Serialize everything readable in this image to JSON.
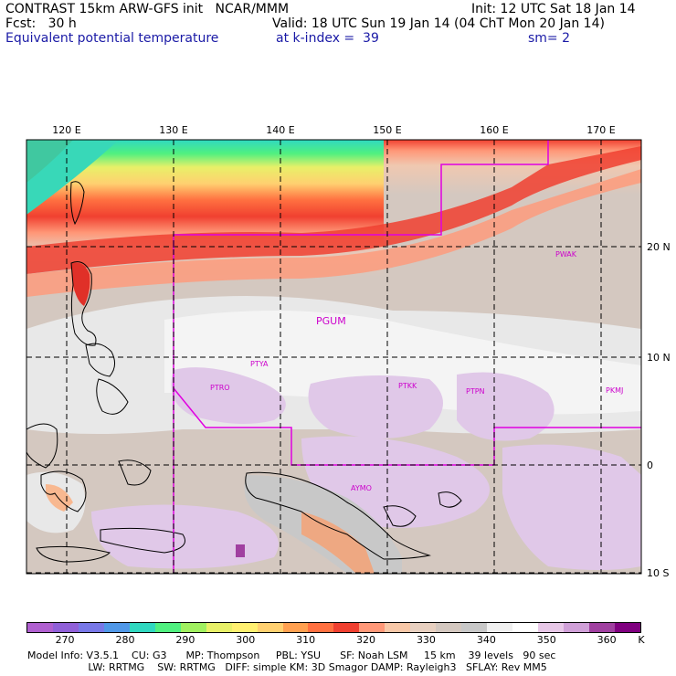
{
  "header": {
    "line1_left": "CONTRAST 15km ARW-GFS init   NCAR/MMM",
    "line1_right": "Init: 12 UTC Sat 18 Jan 14",
    "line2_left": "Fcst:   30 h",
    "line2_right": "Valid: 18 UTC Sun 19 Jan 14 (04 ChT Mon 20 Jan 14)",
    "line3_left": "Equivalent potential temperature",
    "line3_mid": "at k-index =  39",
    "line3_right": "sm= 2"
  },
  "map": {
    "lon_labels": [
      "120 E",
      "130 E",
      "140 E",
      "150 E",
      "160 E",
      "170 E"
    ],
    "lat_labels": [
      "20 N",
      "10 N",
      "0",
      "10 S"
    ],
    "stations": [
      "PWAK",
      "PGUM",
      "PTYA",
      "PTRO",
      "PTKK",
      "PTPN",
      "PKMJ",
      "AYMO"
    ],
    "colors": {
      "boundary": "#e000e0",
      "grid": "#000000",
      "coast": "#000000"
    }
  },
  "colorbar": {
    "unit": "K",
    "tick_labels": [
      "270",
      "280",
      "290",
      "300",
      "310",
      "320",
      "330",
      "340",
      "350",
      "360"
    ],
    "colors": [
      "#b060d0",
      "#9060d8",
      "#7878e8",
      "#5098e8",
      "#30d8c0",
      "#50f080",
      "#a0f060",
      "#e8f068",
      "#fff070",
      "#ffd070",
      "#ffa050",
      "#ff7040",
      "#f04030",
      "#ff9878",
      "#f8c8a8",
      "#e8d0c0",
      "#d4c8c0",
      "#c8c8c8",
      "#f0f0f0",
      "#ffffff",
      "#e8c8e8",
      "#d0a0d8",
      "#a040a0",
      "#800080"
    ]
  },
  "footer": {
    "line1": "Model Info: V3.5.1    CU: G3      MP: Thompson     PBL: YSU      SF: Noah LSM     15 km    39 levels   90 sec",
    "line2": "                   LW: RRTMG    SW: RRTMG   DIFF: simple KM: 3D Smagor DAMP: Rayleigh3   SFLAY: Rev MM5"
  }
}
